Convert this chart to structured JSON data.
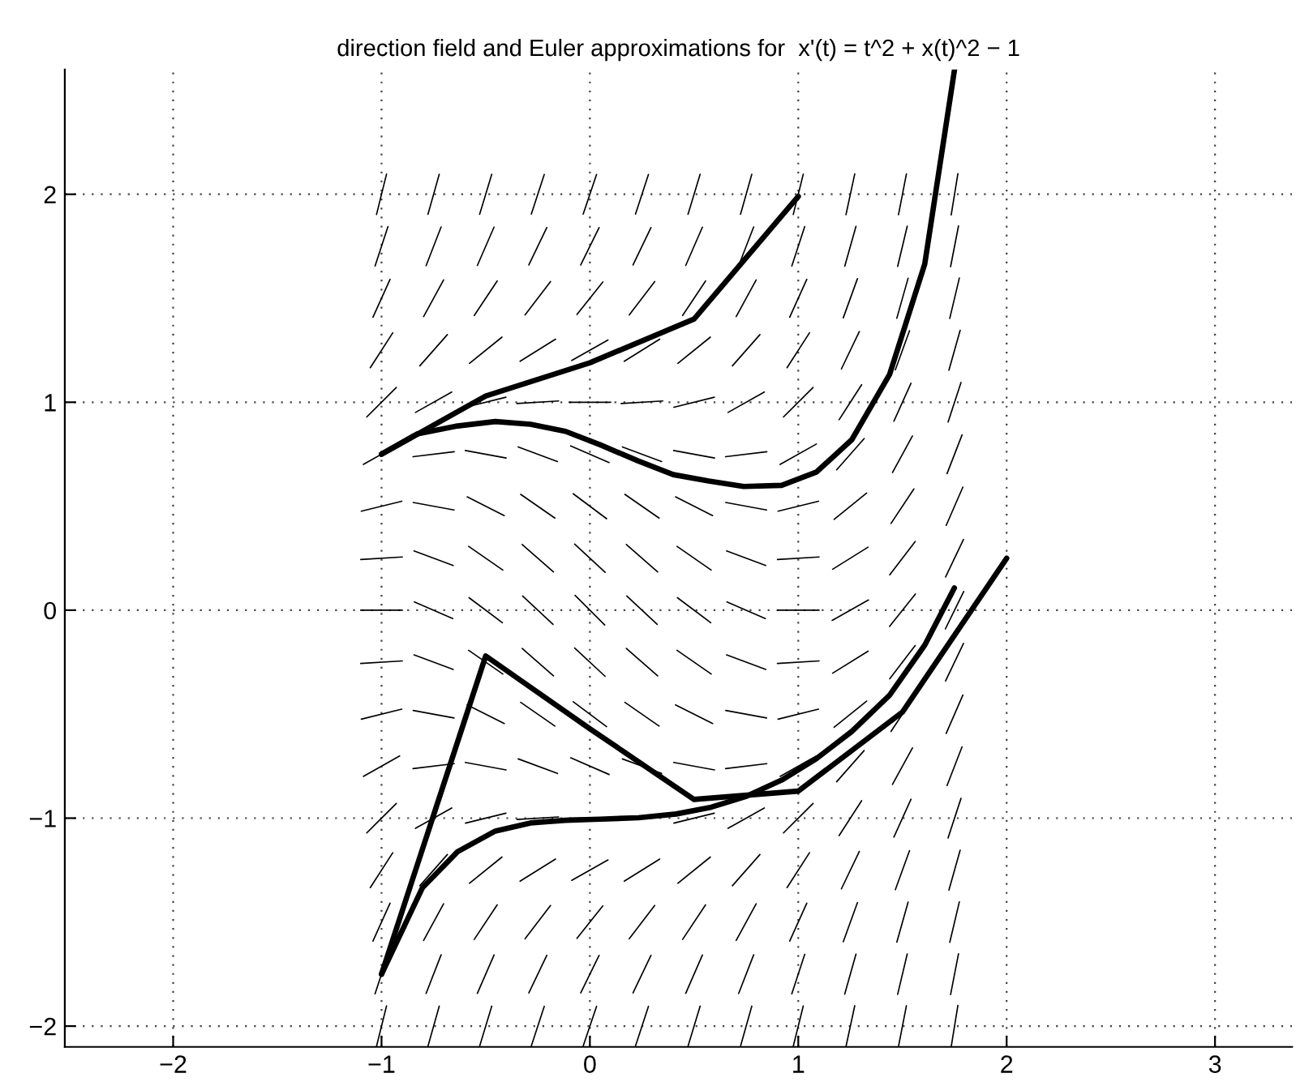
{
  "chart_data": {
    "type": "line",
    "title": "direction field and Euler approximations for  x'(t) = t^2 + x(t)^2 − 1",
    "xlim": [
      -2.52,
      3.37
    ],
    "ylim": [
      -2.1,
      2.6
    ],
    "xticks": [
      {
        "value": -2,
        "label": "−2"
      },
      {
        "value": -1,
        "label": "−1"
      },
      0,
      1,
      2,
      3
    ],
    "yticks": [
      {
        "value": -2,
        "label": "−2"
      },
      {
        "value": -1,
        "label": "−1"
      },
      0,
      1,
      2
    ],
    "grid": true,
    "line_style": "solid",
    "marker": "none",
    "series": [
      {
        "color": "#000000",
        "x": [
          -1.024,
          -0.976,
          null,
          -0.777,
          -0.723,
          null,
          -0.529,
          -0.471,
          null,
          -0.281,
          -0.219,
          null,
          -0.032,
          0.032,
          null,
          0.219,
          0.281,
          null,
          0.471,
          0.529,
          null,
          0.723,
          0.777,
          null,
          0.976,
          1.024,
          null,
          1.229,
          1.271,
          null,
          1.481,
          1.519,
          null,
          1.734,
          1.766
        ],
        "values": [
          1.903,
          2.097,
          null,
          1.904,
          2.096,
          null,
          1.904,
          2.096,
          null,
          1.905,
          2.095,
          null,
          1.905,
          2.095,
          null,
          1.905,
          2.095,
          null,
          1.904,
          2.096,
          null,
          1.904,
          2.096,
          null,
          1.903,
          2.097,
          null,
          1.902,
          2.098,
          null,
          1.902,
          2.098,
          null,
          1.901,
          2.099
        ]
      },
      {
        "color": "#000000",
        "x": [
          -1.031,
          -0.969,
          null,
          -0.786,
          -0.714,
          null,
          -0.54,
          -0.46,
          null,
          -0.293,
          -0.207,
          null,
          -0.044,
          0.044,
          null,
          0.207,
          0.293,
          null,
          0.46,
          0.54,
          null,
          0.714,
          0.786,
          null,
          0.969,
          1.031,
          null,
          1.223,
          1.277,
          null,
          1.477,
          1.523,
          null,
          1.731,
          1.769
        ],
        "values": [
          1.655,
          1.845,
          null,
          1.657,
          1.843,
          null,
          1.658,
          1.842,
          null,
          1.66,
          1.84,
          null,
          1.66,
          1.84,
          null,
          1.66,
          1.84,
          null,
          1.658,
          1.842,
          null,
          1.657,
          1.843,
          null,
          1.655,
          1.845,
          null,
          1.654,
          1.846,
          null,
          1.653,
          1.847,
          null,
          1.652,
          1.848
        ]
      },
      {
        "color": "#000000",
        "x": [
          -1.041,
          -0.959,
          null,
          -0.798,
          -0.702,
          null,
          -0.555,
          -0.445,
          null,
          -0.311,
          -0.189,
          null,
          -0.062,
          0.062,
          null,
          0.189,
          0.311,
          null,
          0.445,
          0.555,
          null,
          0.702,
          0.798,
          null,
          0.959,
          1.041,
          null,
          1.216,
          1.284,
          null,
          1.473,
          1.527,
          null,
          1.727,
          1.773
        ],
        "values": [
          1.409,
          1.591,
          null,
          1.412,
          1.588,
          null,
          1.417,
          1.583,
          null,
          1.42,
          1.58,
          null,
          1.422,
          1.578,
          null,
          1.42,
          1.58,
          null,
          1.417,
          1.583,
          null,
          1.412,
          1.588,
          null,
          1.409,
          1.591,
          null,
          1.406,
          1.594,
          null,
          1.404,
          1.596,
          null,
          1.403,
          1.597
        ]
      },
      {
        "color": "#000000",
        "x": [
          -1.054,
          -0.946,
          null,
          -0.816,
          -0.684,
          null,
          -0.578,
          -0.422,
          null,
          -0.335,
          -0.165,
          null,
          -0.087,
          0.087,
          null,
          0.165,
          0.335,
          null,
          0.422,
          0.578,
          null,
          0.684,
          0.816,
          null,
          0.946,
          1.054,
          null,
          1.207,
          1.293,
          null,
          1.466,
          1.534,
          null,
          1.723,
          1.777
        ],
        "values": [
          1.166,
          1.334,
          null,
          1.175,
          1.325,
          null,
          1.187,
          1.313,
          null,
          1.197,
          1.303,
          null,
          1.201,
          1.299,
          null,
          1.197,
          1.303,
          null,
          1.187,
          1.313,
          null,
          1.175,
          1.325,
          null,
          1.166,
          1.334,
          null,
          1.16,
          1.34,
          null,
          1.156,
          1.344,
          null,
          1.154,
          1.346
        ]
      },
      {
        "color": "#000000",
        "x": [
          -1.071,
          -0.929,
          null,
          -0.837,
          -0.663,
          null,
          -0.597,
          -0.403,
          null,
          -0.35,
          -0.15,
          null,
          -0.1,
          0.1,
          null,
          0.15,
          0.35,
          null,
          0.403,
          0.597,
          null,
          0.663,
          0.837,
          null,
          0.929,
          1.071,
          null,
          1.196,
          1.304,
          null,
          1.459,
          1.541,
          null,
          1.719,
          1.781
        ],
        "values": [
          0.929,
          1.071,
          null,
          0.951,
          1.049,
          null,
          0.976,
          1.024,
          null,
          0.994,
          1.006,
          null,
          1,
          1,
          null,
          0.994,
          1.006,
          null,
          0.976,
          1.024,
          null,
          0.951,
          1.049,
          null,
          0.929,
          1.071,
          null,
          0.916,
          1.084,
          null,
          0.909,
          1.091,
          null,
          0.905,
          1.095
        ]
      },
      {
        "color": "#000000",
        "x": [
          -1.087,
          -0.913,
          null,
          -0.849,
          -0.651,
          null,
          -0.598,
          -0.402,
          null,
          -0.344,
          -0.156,
          null,
          -0.092,
          0.092,
          null,
          0.156,
          0.344,
          null,
          0.402,
          0.598,
          null,
          0.651,
          0.849,
          null,
          0.913,
          1.087,
          null,
          1.184,
          1.316,
          null,
          1.452,
          1.548,
          null,
          1.714,
          1.786
        ],
        "values": [
          0.701,
          0.799,
          null,
          0.738,
          0.762,
          null,
          0.768,
          0.732,
          null,
          0.785,
          0.715,
          null,
          0.79,
          0.71,
          null,
          0.785,
          0.715,
          null,
          0.768,
          0.732,
          null,
          0.738,
          0.762,
          null,
          0.701,
          0.799,
          null,
          0.675,
          0.825,
          null,
          0.662,
          0.838,
          null,
          0.657,
          0.843
        ]
      },
      {
        "color": "#000000",
        "x": [
          -1.097,
          -0.903,
          null,
          -0.848,
          -0.652,
          null,
          -0.589,
          -0.411,
          null,
          -0.332,
          -0.168,
          null,
          -0.08,
          0.08,
          null,
          0.168,
          0.332,
          null,
          0.411,
          0.589,
          null,
          0.652,
          0.848,
          null,
          0.903,
          1.097,
          null,
          1.172,
          1.328,
          null,
          1.445,
          1.555,
          null,
          1.71,
          1.79
        ],
        "values": [
          0.476,
          0.524,
          null,
          0.518,
          0.482,
          null,
          0.545,
          0.455,
          null,
          0.557,
          0.443,
          null,
          0.56,
          0.44,
          null,
          0.557,
          0.443,
          null,
          0.545,
          0.455,
          null,
          0.518,
          0.482,
          null,
          0.476,
          0.524,
          null,
          0.437,
          0.563,
          null,
          0.417,
          0.583,
          null,
          0.408,
          0.592
        ]
      },
      {
        "color": "#000000",
        "x": [
          -1.1,
          -0.9,
          null,
          -0.844,
          -0.656,
          null,
          -0.582,
          -0.418,
          null,
          -0.325,
          -0.175,
          null,
          -0.073,
          0.073,
          null,
          0.175,
          0.325,
          null,
          0.418,
          0.582,
          null,
          0.656,
          0.844,
          null,
          0.9,
          1.1,
          null,
          1.165,
          1.335,
          null,
          1.439,
          1.561,
          null,
          1.707,
          1.793
        ],
        "values": [
          0.244,
          0.256,
          null,
          0.285,
          0.215,
          null,
          0.307,
          0.193,
          null,
          0.316,
          0.184,
          null,
          0.318,
          0.182,
          null,
          0.316,
          0.184,
          null,
          0.307,
          0.193,
          null,
          0.285,
          0.215,
          null,
          0.244,
          0.256,
          null,
          0.197,
          0.303,
          null,
          0.17,
          0.33,
          null,
          0.16,
          0.34
        ]
      },
      {
        "color": "#000000",
        "x": [
          -1.1,
          -0.9,
          null,
          -0.842,
          -0.658,
          null,
          -0.58,
          -0.42,
          null,
          -0.323,
          -0.177,
          null,
          -0.071,
          0.071,
          null,
          0.177,
          0.323,
          null,
          0.42,
          0.58,
          null,
          0.658,
          0.842,
          null,
          0.9,
          1.1,
          null,
          1.163,
          1.337,
          null,
          1.438,
          1.562,
          null,
          1.706,
          1.794
        ],
        "values": [
          0,
          0,
          null,
          0.04,
          -0.04,
          null,
          0.06,
          -0.06,
          null,
          0.068,
          -0.068,
          null,
          0.071,
          -0.071,
          null,
          0.068,
          -0.068,
          null,
          0.06,
          -0.06,
          null,
          0.04,
          -0.04,
          null,
          0,
          0,
          null,
          -0.049,
          0.049,
          null,
          -0.078,
          0.078,
          null,
          -0.09,
          0.09
        ]
      },
      {
        "color": "#000000",
        "x": [
          -1.1,
          -0.9,
          null,
          -0.844,
          -0.656,
          null,
          -0.582,
          -0.418,
          null,
          -0.325,
          -0.175,
          null,
          -0.073,
          0.073,
          null,
          0.175,
          0.325,
          null,
          0.418,
          0.582,
          null,
          0.656,
          0.844,
          null,
          0.9,
          1.1,
          null,
          1.165,
          1.335,
          null,
          1.439,
          1.561,
          null,
          1.707,
          1.793
        ],
        "values": [
          -0.256,
          -0.244,
          null,
          -0.215,
          -0.285,
          null,
          -0.193,
          -0.307,
          null,
          -0.184,
          -0.316,
          null,
          -0.182,
          -0.318,
          null,
          -0.184,
          -0.316,
          null,
          -0.193,
          -0.307,
          null,
          -0.215,
          -0.285,
          null,
          -0.256,
          -0.244,
          null,
          -0.303,
          -0.197,
          null,
          -0.33,
          -0.17,
          null,
          -0.34,
          -0.16
        ]
      },
      {
        "color": "#000000",
        "x": [
          -1.097,
          -0.903,
          null,
          -0.848,
          -0.652,
          null,
          -0.589,
          -0.411,
          null,
          -0.332,
          -0.168,
          null,
          -0.08,
          0.08,
          null,
          0.168,
          0.332,
          null,
          0.411,
          0.589,
          null,
          0.652,
          0.848,
          null,
          0.903,
          1.097,
          null,
          1.172,
          1.328,
          null,
          1.445,
          1.555,
          null,
          1.71,
          1.79
        ],
        "values": [
          -0.524,
          -0.476,
          null,
          -0.482,
          -0.518,
          null,
          -0.455,
          -0.545,
          null,
          -0.443,
          -0.557,
          null,
          -0.44,
          -0.56,
          null,
          -0.443,
          -0.557,
          null,
          -0.455,
          -0.545,
          null,
          -0.482,
          -0.518,
          null,
          -0.524,
          -0.476,
          null,
          -0.563,
          -0.437,
          null,
          -0.583,
          -0.417,
          null,
          -0.592,
          -0.408
        ]
      },
      {
        "color": "#000000",
        "x": [
          -1.087,
          -0.913,
          null,
          -0.849,
          -0.651,
          null,
          -0.598,
          -0.402,
          null,
          -0.344,
          -0.156,
          null,
          -0.092,
          0.092,
          null,
          0.156,
          0.344,
          null,
          0.402,
          0.598,
          null,
          0.651,
          0.849,
          null,
          0.913,
          1.087,
          null,
          1.184,
          1.316,
          null,
          1.452,
          1.548,
          null,
          1.714,
          1.786
        ],
        "values": [
          -0.799,
          -0.701,
          null,
          -0.762,
          -0.738,
          null,
          -0.732,
          -0.768,
          null,
          -0.715,
          -0.785,
          null,
          -0.71,
          -0.79,
          null,
          -0.715,
          -0.785,
          null,
          -0.732,
          -0.768,
          null,
          -0.762,
          -0.738,
          null,
          -0.799,
          -0.701,
          null,
          -0.825,
          -0.675,
          null,
          -0.838,
          -0.662,
          null,
          -0.843,
          -0.657
        ]
      },
      {
        "color": "#000000",
        "x": [
          -1.071,
          -0.929,
          null,
          -0.837,
          -0.663,
          null,
          -0.597,
          -0.403,
          null,
          -0.35,
          -0.15,
          null,
          -0.1,
          0.1,
          null,
          0.15,
          0.35,
          null,
          0.403,
          0.597,
          null,
          0.663,
          0.837,
          null,
          0.929,
          1.071,
          null,
          1.196,
          1.304,
          null,
          1.459,
          1.541,
          null,
          1.719,
          1.781
        ],
        "values": [
          -1.071,
          -0.929,
          null,
          -1.049,
          -0.951,
          null,
          -1.024,
          -0.976,
          null,
          -1.006,
          -0.994,
          null,
          -1,
          -1,
          null,
          -1.006,
          -0.994,
          null,
          -1.024,
          -0.976,
          null,
          -1.049,
          -0.951,
          null,
          -1.071,
          -0.929,
          null,
          -1.084,
          -0.916,
          null,
          -1.091,
          -0.909,
          null,
          -1.095,
          -0.905
        ]
      },
      {
        "color": "#000000",
        "x": [
          -1.054,
          -0.946,
          null,
          -0.816,
          -0.684,
          null,
          -0.578,
          -0.422,
          null,
          -0.335,
          -0.165,
          null,
          -0.087,
          0.087,
          null,
          0.165,
          0.335,
          null,
          0.422,
          0.578,
          null,
          0.684,
          0.816,
          null,
          0.946,
          1.054,
          null,
          1.207,
          1.293,
          null,
          1.466,
          1.534,
          null,
          1.723,
          1.777
        ],
        "values": [
          -1.334,
          -1.166,
          null,
          -1.325,
          -1.175,
          null,
          -1.313,
          -1.187,
          null,
          -1.303,
          -1.197,
          null,
          -1.299,
          -1.201,
          null,
          -1.303,
          -1.197,
          null,
          -1.313,
          -1.187,
          null,
          -1.325,
          -1.175,
          null,
          -1.334,
          -1.166,
          null,
          -1.34,
          -1.16,
          null,
          -1.344,
          -1.156,
          null,
          -1.346,
          -1.154
        ]
      },
      {
        "color": "#000000",
        "x": [
          -1.041,
          -0.959,
          null,
          -0.798,
          -0.702,
          null,
          -0.555,
          -0.445,
          null,
          -0.311,
          -0.189,
          null,
          -0.062,
          0.062,
          null,
          0.189,
          0.311,
          null,
          0.445,
          0.555,
          null,
          0.702,
          0.798,
          null,
          0.959,
          1.041,
          null,
          1.216,
          1.284,
          null,
          1.473,
          1.527,
          null,
          1.727,
          1.773
        ],
        "values": [
          -1.591,
          -1.409,
          null,
          -1.588,
          -1.412,
          null,
          -1.583,
          -1.417,
          null,
          -1.58,
          -1.42,
          null,
          -1.578,
          -1.422,
          null,
          -1.58,
          -1.42,
          null,
          -1.583,
          -1.417,
          null,
          -1.588,
          -1.412,
          null,
          -1.591,
          -1.409,
          null,
          -1.594,
          -1.406,
          null,
          -1.596,
          -1.404,
          null,
          -1.597,
          -1.403
        ]
      },
      {
        "color": "#000000",
        "x": [
          -1.031,
          -0.969,
          null,
          -0.786,
          -0.714,
          null,
          -0.54,
          -0.46,
          null,
          -0.293,
          -0.207,
          null,
          -0.044,
          0.044,
          null,
          0.207,
          0.293,
          null,
          0.46,
          0.54,
          null,
          0.714,
          0.786,
          null,
          0.969,
          1.031,
          null,
          1.223,
          1.277,
          null,
          1.477,
          1.523,
          null,
          1.731,
          1.769
        ],
        "values": [
          -1.845,
          -1.655,
          null,
          -1.843,
          -1.657,
          null,
          -1.842,
          -1.658,
          null,
          -1.84,
          -1.66,
          null,
          -1.84,
          -1.66,
          null,
          -1.84,
          -1.66,
          null,
          -1.842,
          -1.658,
          null,
          -1.843,
          -1.657,
          null,
          -1.845,
          -1.655,
          null,
          -1.846,
          -1.654,
          null,
          -1.847,
          -1.653,
          null,
          -1.848,
          -1.652
        ]
      },
      {
        "color": "#000000",
        "x": [
          -1.024,
          -0.976,
          null,
          -0.777,
          -0.723,
          null,
          -0.529,
          -0.471,
          null,
          -0.281,
          -0.219,
          null,
          -0.032,
          0.032,
          null,
          0.219,
          0.281,
          null,
          0.471,
          0.529,
          null,
          0.723,
          0.777,
          null,
          0.976,
          1.024,
          null,
          1.229,
          1.271,
          null,
          1.481,
          1.519,
          null,
          1.734,
          1.766
        ],
        "values": [
          -2.097,
          -1.903,
          null,
          -2.096,
          -1.904,
          null,
          -2.096,
          -1.904,
          null,
          -2.095,
          -1.905,
          null,
          -2.095,
          -1.905,
          null,
          -2.095,
          -1.905,
          null,
          -2.096,
          -1.904,
          null,
          -2.096,
          -1.904,
          null,
          -2.097,
          -1.903,
          null,
          -2.098,
          -1.902,
          null,
          -2.098,
          -1.902,
          null,
          -2.099,
          -1.901
        ]
      },
      {
        "color": "#000000",
        "x": [
          -1,
          -0.5,
          0,
          0.5,
          1
        ],
        "values": [
          0.75,
          1.03,
          1.19,
          1.4,
          1.99
        ]
      },
      {
        "color": "#000000",
        "x": [
          -1,
          -0.83,
          -0.635,
          -0.454,
          -0.285,
          -0.117,
          0.05,
          0.233,
          0.4,
          0.57,
          0.738,
          0.92,
          1.088,
          1.257,
          1.438,
          1.607,
          1.75
        ],
        "values": [
          0.75,
          0.847,
          0.886,
          0.907,
          0.894,
          0.86,
          0.795,
          0.717,
          0.652,
          0.621,
          0.595,
          0.6,
          0.665,
          0.82,
          1.133,
          1.665,
          2.6
        ]
      },
      {
        "color": "#000000",
        "x": [
          -1,
          -0.5,
          0,
          0.5,
          1,
          1.5,
          2
        ],
        "values": [
          -1.75,
          -0.22,
          -0.57,
          -0.91,
          -0.87,
          -0.49,
          0.25
        ]
      },
      {
        "color": "#000000",
        "x": [
          -1,
          -0.804,
          -0.635,
          -0.454,
          -0.285,
          -0.117,
          0.05,
          0.233,
          0.414,
          0.583,
          0.751,
          0.92,
          1.088,
          1.257,
          1.438,
          1.607,
          1.749
        ],
        "values": [
          -1.75,
          -1.335,
          -1.161,
          -1.062,
          -1.023,
          -1.01,
          -1.005,
          -0.998,
          -0.98,
          -0.947,
          -0.895,
          -0.817,
          -0.713,
          -0.583,
          -0.409,
          -0.168,
          0.107
        ]
      }
    ]
  }
}
